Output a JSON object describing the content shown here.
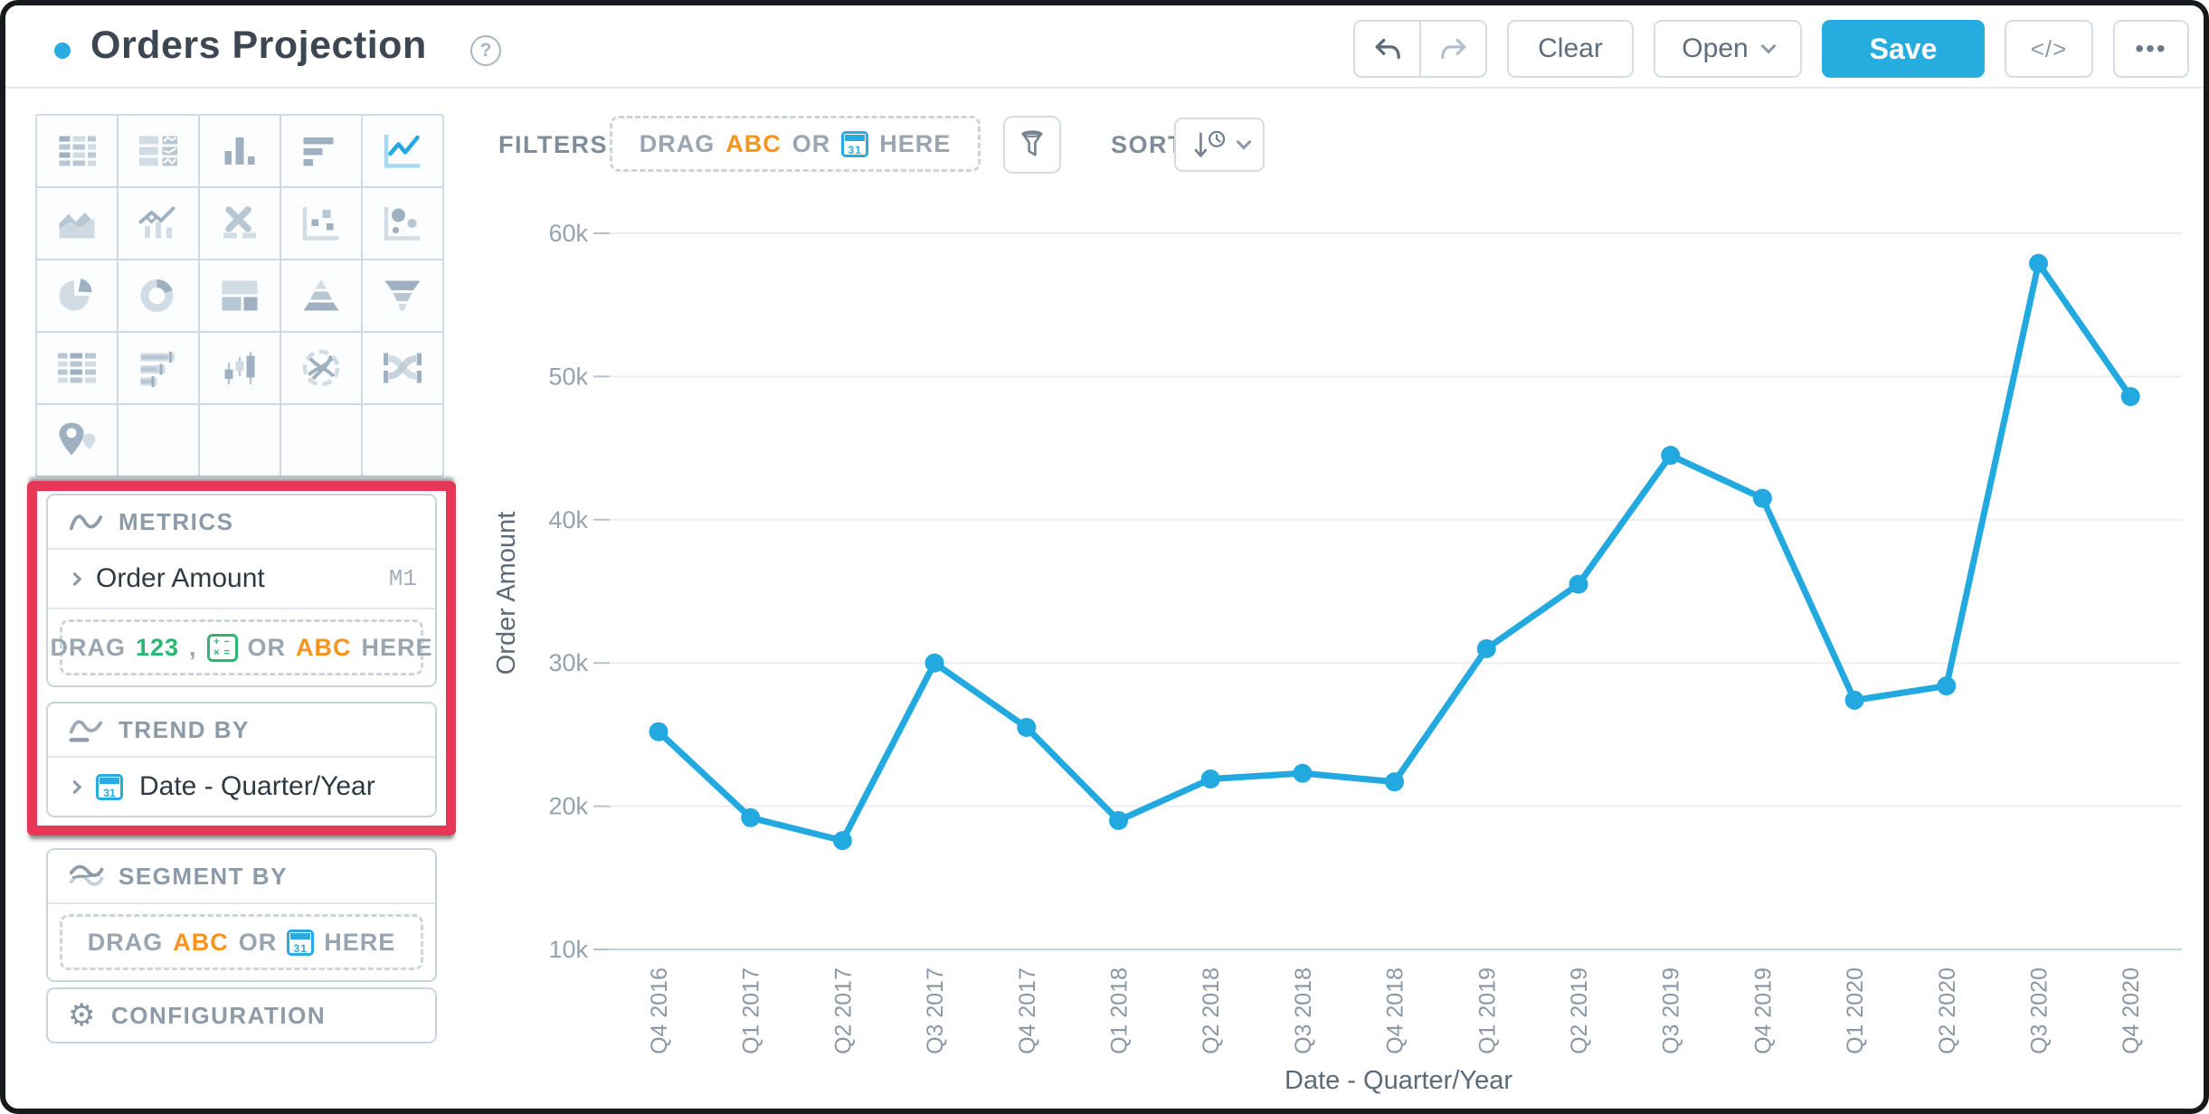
{
  "header": {
    "title": "Orders Projection",
    "help": "?",
    "clear": "Clear",
    "open": "Open",
    "save": "Save",
    "code": "</>",
    "more": "•••",
    "accent_color": "#29ABE2"
  },
  "sidebar": {
    "chart_types": [
      {
        "name": "table",
        "selected": false
      },
      {
        "name": "summary-table",
        "selected": false
      },
      {
        "name": "column-chart",
        "selected": false
      },
      {
        "name": "bar-chart",
        "selected": false
      },
      {
        "name": "line-chart",
        "selected": true
      },
      {
        "name": "area-chart",
        "selected": false
      },
      {
        "name": "combo-chart",
        "selected": false
      },
      {
        "name": "x-chart",
        "selected": false
      },
      {
        "name": "scatter-plot",
        "selected": false
      },
      {
        "name": "bubble-chart",
        "selected": false
      },
      {
        "name": "pie-chart",
        "selected": false
      },
      {
        "name": "donut-chart",
        "selected": false
      },
      {
        "name": "treemap-chart",
        "selected": false
      },
      {
        "name": "pyramid-chart",
        "selected": false
      },
      {
        "name": "funnel-chart",
        "selected": false
      },
      {
        "name": "pivot-table",
        "selected": false
      },
      {
        "name": "bullet-chart",
        "selected": false
      },
      {
        "name": "candlestick-chart",
        "selected": false
      },
      {
        "name": "chord-diagram",
        "selected": false
      },
      {
        "name": "sankey-diagram",
        "selected": false
      },
      {
        "name": "map-chart",
        "selected": false
      },
      {
        "name": "empty",
        "selected": false
      },
      {
        "name": "empty",
        "selected": false
      },
      {
        "name": "empty",
        "selected": false
      },
      {
        "name": "empty",
        "selected": false
      }
    ],
    "metrics": {
      "title": "METRICS",
      "item": {
        "label": "Order Amount",
        "badge": "M1"
      },
      "dropzone": {
        "drag": "DRAG",
        "num": "123",
        "comma": ",",
        "or": "OR",
        "abc": "ABC",
        "here": "HERE"
      }
    },
    "trend_by": {
      "title": "TREND BY",
      "item": {
        "label": "Date - Quarter/Year"
      }
    },
    "segment_by": {
      "title": "SEGMENT BY",
      "dropzone": {
        "drag": "DRAG",
        "abc": "ABC",
        "or": "OR",
        "here": "HERE"
      }
    },
    "configuration": {
      "title": "CONFIGURATION"
    },
    "highlight_color": "#E73757"
  },
  "toolbar": {
    "filters": "FILTERS",
    "dropzone": {
      "drag": "DRAG",
      "abc": "ABC",
      "or": "OR",
      "here": "HERE"
    },
    "sort": "SORT"
  },
  "chart_data": {
    "type": "line",
    "title": "",
    "xlabel": "Date - Quarter/Year",
    "ylabel": "Order Amount",
    "categories": [
      "Q4 2016",
      "Q1 2017",
      "Q2 2017",
      "Q3 2017",
      "Q4 2017",
      "Q1 2018",
      "Q2 2018",
      "Q3 2018",
      "Q4 2018",
      "Q1 2019",
      "Q2 2019",
      "Q3 2019",
      "Q4 2019",
      "Q1 2020",
      "Q2 2020",
      "Q3 2020",
      "Q4 2020"
    ],
    "values": [
      25200,
      19200,
      17600,
      30000,
      25500,
      19000,
      21900,
      22300,
      21700,
      31000,
      35500,
      44500,
      41500,
      27400,
      28400,
      57900,
      48600
    ],
    "ylim": [
      10000,
      60000
    ],
    "yticks": [
      60000,
      50000,
      40000,
      30000,
      20000,
      10000
    ],
    "ytick_labels": [
      "60k",
      "50k",
      "40k",
      "30k",
      "20k",
      "10k"
    ],
    "grid": "horizontal",
    "legend": "none",
    "line_color": "#21A9E0"
  }
}
